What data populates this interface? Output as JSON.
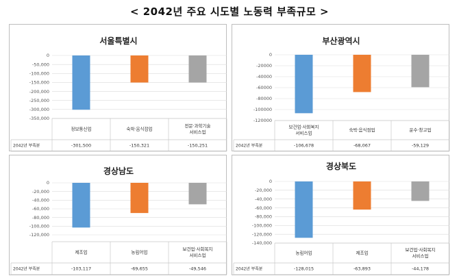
{
  "page_title": "< 2042년 주요 시도별 노동력 부족규모 >",
  "colors": {
    "blue": "#5b9bd5",
    "orange": "#ed7d31",
    "gray": "#a5a5a5"
  },
  "chart_data": [
    {
      "type": "bar",
      "title": "서울특별시",
      "categories": [
        "정보통신업",
        "숙박·음식점업",
        "전문·과학기술\n서비스업"
      ],
      "values": [
        -301500,
        -150321,
        -150251
      ],
      "value_labels": [
        "-301,500",
        "-150,321",
        "-150,251"
      ],
      "ylim": [
        -350000,
        0
      ],
      "yticks": [
        "0",
        "-50,000",
        "-100,000",
        "-150,000",
        "-200,000",
        "-250,000",
        "-300,000",
        "-350,000"
      ],
      "ytick_values": [
        0,
        -50000,
        -100000,
        -150000,
        -200000,
        -250000,
        -300000,
        -350000
      ],
      "row_label": "2042년 부족분",
      "bar_colors": [
        "#5b9bd5",
        "#ed7d31",
        "#a5a5a5"
      ]
    },
    {
      "type": "bar",
      "title": "부산광역시",
      "categories": [
        "보건업·사회복지\n서비스업",
        "숙박·음식점업",
        "운수·창고업"
      ],
      "values": [
        -106678,
        -68067,
        -59129
      ],
      "value_labels": [
        "-106,678",
        "-68,067",
        "-59,129"
      ],
      "ylim": [
        -120000,
        0
      ],
      "yticks": [
        "0",
        "-20000",
        "-40000",
        "-60000",
        "-80000",
        "-100000",
        "-120000"
      ],
      "ytick_values": [
        0,
        -20000,
        -40000,
        -60000,
        -80000,
        -100000,
        -120000
      ],
      "row_label": "2042년 부족분",
      "bar_colors": [
        "#5b9bd5",
        "#ed7d31",
        "#a5a5a5"
      ]
    },
    {
      "type": "bar",
      "title": "경상남도",
      "categories": [
        "제조업",
        "농림어업",
        "보건업·사회복지\n서비스업"
      ],
      "values": [
        -103117,
        -69655,
        -49546
      ],
      "value_labels": [
        "-103,117",
        "-69,655",
        "-49,546"
      ],
      "ylim": [
        -120000,
        0
      ],
      "yticks": [
        "0",
        "-20,000",
        "-40,000",
        "-60,000",
        "-80,000",
        "-100,000",
        "-120,000"
      ],
      "ytick_values": [
        0,
        -20000,
        -40000,
        -60000,
        -80000,
        -100000,
        -120000
      ],
      "row_label": "2042년 부족분",
      "bar_colors": [
        "#5b9bd5",
        "#ed7d31",
        "#a5a5a5"
      ]
    },
    {
      "type": "bar",
      "title": "경상북도",
      "categories": [
        "농림어업",
        "제조업",
        "보건업·사회복지\n서비스업"
      ],
      "values": [
        -128015,
        -63893,
        -44178
      ],
      "value_labels": [
        "-128,015",
        "-63,893",
        "-44,178"
      ],
      "ylim": [
        -140000,
        0
      ],
      "yticks": [
        "0",
        "-20,000",
        "-40,000",
        "-60,000",
        "-80,000",
        "-100,000",
        "-120,000",
        "-140,000"
      ],
      "ytick_values": [
        0,
        -20000,
        -40000,
        -60000,
        -80000,
        -100000,
        -120000,
        -140000
      ],
      "row_label": "2042년 부족분",
      "bar_colors": [
        "#5b9bd5",
        "#ed7d31",
        "#a5a5a5"
      ]
    }
  ]
}
